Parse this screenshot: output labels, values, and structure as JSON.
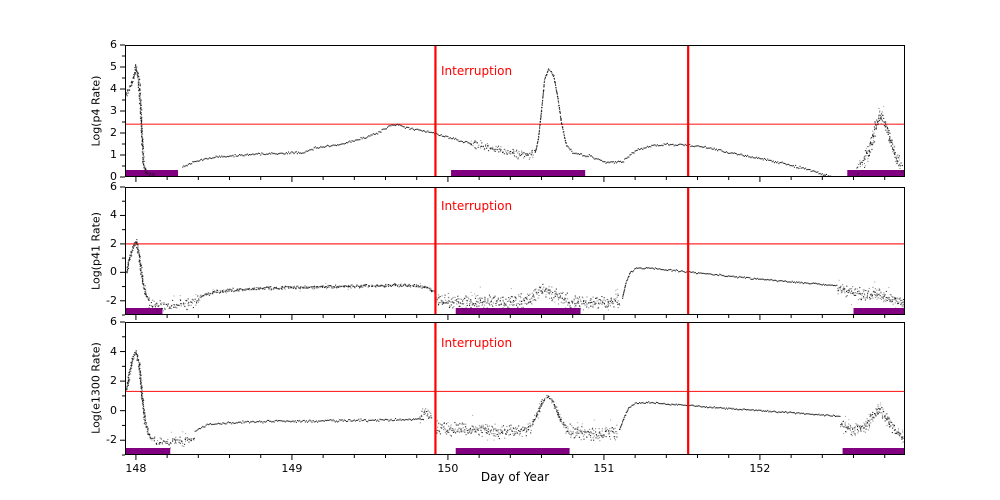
{
  "figure": {
    "xlabel": "Day of Year",
    "xlim": [
      147.93,
      152.93
    ],
    "xticks": [
      148,
      149,
      150,
      151,
      152
    ],
    "x_minor_step": 0.2,
    "interruption_label": "Interruption",
    "interruption_lines": [
      149.92,
      151.54
    ],
    "colors": {
      "background": "#ffffff",
      "frame": "#000000",
      "points": "#141414",
      "threshold_line": "#ff2a2a",
      "interruption_line": "#ff0000",
      "interruption_text": "#ff0000",
      "interval_bar": "#800080",
      "label_text": "#000000"
    }
  },
  "chart_data": [
    {
      "type": "scatter",
      "ylabel": "Log(p4 Rate)",
      "ylim": [
        0,
        6
      ],
      "yticks": [
        0,
        1,
        2,
        3,
        4,
        5,
        6
      ],
      "y_minor_step": 0.5,
      "threshold": 2.4,
      "interval_bars": [
        [
          147.93,
          148.27
        ],
        [
          150.02,
          150.88
        ],
        [
          152.56,
          152.93
        ]
      ],
      "segments": [
        {
          "noise": 0.1,
          "spread": 2,
          "points": [
            [
              147.93,
              3.7
            ],
            [
              147.95,
              3.95
            ],
            [
              147.97,
              4.15
            ],
            [
              147.99,
              4.6
            ],
            [
              148.0,
              5.0
            ],
            [
              148.02,
              4.4
            ],
            [
              148.035,
              2.6
            ],
            [
              148.05,
              0.5
            ],
            [
              148.07,
              0.18
            ],
            [
              148.1,
              0.1
            ],
            [
              148.12,
              0.06
            ]
          ]
        },
        {
          "noise": 0.05,
          "spread": 1,
          "points": [
            [
              148.3,
              0.45
            ],
            [
              148.4,
              0.75
            ],
            [
              148.5,
              0.9
            ],
            [
              148.6,
              0.95
            ],
            [
              148.7,
              1.0
            ],
            [
              148.8,
              1.05
            ],
            [
              148.9,
              1.05
            ],
            [
              149.0,
              1.1
            ],
            [
              149.07,
              1.08
            ],
            [
              149.15,
              1.32
            ],
            [
              149.25,
              1.4
            ],
            [
              149.35,
              1.55
            ],
            [
              149.45,
              1.75
            ],
            [
              149.55,
              2.0
            ],
            [
              149.62,
              2.28
            ],
            [
              149.67,
              2.4
            ],
            [
              149.72,
              2.25
            ],
            [
              149.8,
              2.15
            ],
            [
              149.9,
              2.0
            ],
            [
              150.0,
              1.8
            ],
            [
              150.1,
              1.6
            ],
            [
              150.15,
              1.55
            ]
          ]
        },
        {
          "noise": 0.18,
          "spread": 2,
          "points": [
            [
              150.15,
              1.5
            ],
            [
              150.22,
              1.42
            ],
            [
              150.3,
              1.28
            ],
            [
              150.38,
              1.12
            ],
            [
              150.45,
              1.05
            ],
            [
              150.52,
              1.0
            ],
            [
              150.56,
              1.05
            ]
          ]
        },
        {
          "noise": 0.06,
          "spread": 1,
          "points": [
            [
              150.56,
              1.1
            ],
            [
              150.58,
              1.7
            ],
            [
              150.6,
              3.0
            ],
            [
              150.62,
              4.4
            ],
            [
              150.645,
              4.9
            ],
            [
              150.66,
              4.85
            ],
            [
              150.68,
              4.55
            ],
            [
              150.7,
              3.8
            ],
            [
              150.73,
              2.4
            ],
            [
              150.76,
              1.45
            ],
            [
              150.8,
              1.1
            ],
            [
              150.85,
              1.0
            ],
            [
              150.92,
              0.95
            ]
          ]
        },
        {
          "noise": 0.05,
          "spread": 1,
          "points": [
            [
              150.92,
              0.92
            ],
            [
              151.0,
              0.7
            ],
            [
              151.04,
              0.63
            ],
            [
              151.08,
              0.7
            ],
            [
              151.12,
              0.68
            ],
            [
              151.16,
              0.95
            ],
            [
              151.22,
              1.25
            ],
            [
              151.3,
              1.4
            ],
            [
              151.4,
              1.48
            ],
            [
              151.5,
              1.47
            ],
            [
              151.6,
              1.4
            ],
            [
              151.7,
              1.28
            ],
            [
              151.8,
              1.12
            ],
            [
              151.9,
              0.98
            ],
            [
              152.0,
              0.85
            ],
            [
              152.1,
              0.7
            ],
            [
              152.2,
              0.55
            ],
            [
              152.3,
              0.35
            ],
            [
              152.4,
              0.12
            ],
            [
              152.46,
              0.02
            ]
          ]
        },
        {
          "noise": 0.3,
          "spread": 2,
          "points": [
            [
              152.62,
              0.3
            ],
            [
              152.66,
              0.6
            ],
            [
              152.7,
              1.2
            ],
            [
              152.74,
              2.2
            ],
            [
              152.77,
              2.85
            ],
            [
              152.8,
              2.4
            ],
            [
              152.84,
              1.6
            ],
            [
              152.87,
              1.0
            ],
            [
              152.9,
              0.55
            ],
            [
              152.93,
              0.35
            ]
          ]
        }
      ]
    },
    {
      "type": "scatter",
      "ylabel": "Log(p41 Rate)",
      "ylim": [
        -3,
        6
      ],
      "yticks": [
        -2,
        0,
        2,
        4,
        6
      ],
      "y_minor_step": 1,
      "threshold": 2.0,
      "interval_bars": [
        [
          147.93,
          148.17
        ],
        [
          150.05,
          150.85
        ],
        [
          152.6,
          152.93
        ]
      ],
      "segments": [
        {
          "noise": 0.1,
          "spread": 2,
          "points": [
            [
              147.94,
              0.0
            ],
            [
              147.96,
              0.9
            ],
            [
              147.98,
              1.7
            ],
            [
              148.0,
              2.2
            ],
            [
              148.02,
              1.3
            ],
            [
              148.04,
              -0.4
            ],
            [
              148.06,
              -1.5
            ],
            [
              148.09,
              -2.1
            ]
          ]
        },
        {
          "noise": 0.35,
          "spread": 2,
          "points": [
            [
              148.09,
              -2.2
            ],
            [
              148.18,
              -2.3
            ],
            [
              148.28,
              -2.3
            ],
            [
              148.36,
              -2.15
            ],
            [
              148.42,
              -1.85
            ]
          ]
        },
        {
          "noise": 0.1,
          "spread": 2,
          "points": [
            [
              148.42,
              -1.7
            ],
            [
              148.5,
              -1.4
            ],
            [
              148.6,
              -1.25
            ],
            [
              148.75,
              -1.15
            ],
            [
              148.95,
              -1.08
            ],
            [
              149.15,
              -1.05
            ],
            [
              149.35,
              -1.0
            ],
            [
              149.55,
              -0.95
            ],
            [
              149.68,
              -0.9
            ],
            [
              149.78,
              -0.95
            ],
            [
              149.86,
              -1.05
            ],
            [
              149.92,
              -1.4
            ]
          ]
        },
        {
          "noise": 0.45,
          "spread": 3,
          "points": [
            [
              149.93,
              -1.9
            ],
            [
              150.05,
              -2.05
            ],
            [
              150.2,
              -2.1
            ],
            [
              150.35,
              -2.1
            ],
            [
              150.5,
              -2.0
            ],
            [
              150.57,
              -1.5
            ],
            [
              150.62,
              -1.2
            ],
            [
              150.68,
              -1.6
            ],
            [
              150.78,
              -2.0
            ],
            [
              150.9,
              -2.1
            ],
            [
              151.02,
              -2.1
            ],
            [
              151.11,
              -2.05
            ]
          ]
        },
        {
          "noise": 0.06,
          "spread": 1,
          "points": [
            [
              151.12,
              -1.8
            ],
            [
              151.14,
              -0.8
            ],
            [
              151.17,
              0.0
            ],
            [
              151.21,
              0.28
            ],
            [
              151.28,
              0.3
            ],
            [
              151.38,
              0.2
            ],
            [
              151.5,
              0.07
            ],
            [
              151.65,
              -0.08
            ],
            [
              151.8,
              -0.27
            ],
            [
              152.0,
              -0.48
            ],
            [
              152.2,
              -0.67
            ],
            [
              152.35,
              -0.8
            ],
            [
              152.5,
              -0.95
            ]
          ]
        },
        {
          "noise": 0.4,
          "spread": 3,
          "points": [
            [
              152.5,
              -1.15
            ],
            [
              152.6,
              -1.45
            ],
            [
              152.68,
              -1.6
            ],
            [
              152.74,
              -1.45
            ],
            [
              152.78,
              -1.7
            ],
            [
              152.84,
              -1.9
            ],
            [
              152.9,
              -2.1
            ],
            [
              152.93,
              -2.2
            ]
          ]
        }
      ]
    },
    {
      "type": "scatter",
      "ylabel": "Log(e1300 Rate)",
      "ylim": [
        -3,
        6
      ],
      "yticks": [
        -2,
        0,
        2,
        4,
        6
      ],
      "y_minor_step": 1,
      "threshold": 1.3,
      "interval_bars": [
        [
          147.93,
          148.22
        ],
        [
          150.05,
          150.78
        ],
        [
          152.53,
          152.93
        ]
      ],
      "segments": [
        {
          "noise": 0.1,
          "spread": 2,
          "points": [
            [
              147.94,
              1.4
            ],
            [
              147.96,
              2.6
            ],
            [
              147.98,
              3.5
            ],
            [
              148.0,
              4.0
            ],
            [
              148.02,
              3.2
            ],
            [
              148.04,
              1.0
            ],
            [
              148.06,
              -0.8
            ],
            [
              148.09,
              -1.8
            ],
            [
              148.12,
              -2.05
            ]
          ]
        },
        {
          "noise": 0.3,
          "spread": 2,
          "points": [
            [
              148.12,
              -2.1
            ],
            [
              148.2,
              -2.2
            ],
            [
              148.3,
              -2.1
            ],
            [
              148.38,
              -1.8
            ]
          ]
        },
        {
          "noise": 0.08,
          "spread": 1,
          "points": [
            [
              148.38,
              -1.35
            ],
            [
              148.45,
              -1.0
            ],
            [
              148.55,
              -0.85
            ],
            [
              148.7,
              -0.76
            ],
            [
              148.9,
              -0.72
            ],
            [
              149.1,
              -0.7
            ],
            [
              149.3,
              -0.68
            ],
            [
              149.5,
              -0.65
            ],
            [
              149.65,
              -0.62
            ],
            [
              149.78,
              -0.58
            ],
            [
              149.85,
              -0.55
            ]
          ]
        },
        {
          "noise": 0.3,
          "spread": 2,
          "points": [
            [
              149.82,
              -0.45
            ],
            [
              149.86,
              0.0
            ],
            [
              149.9,
              -0.5
            ]
          ]
        },
        {
          "noise": 0.4,
          "spread": 3,
          "points": [
            [
              149.93,
              -1.05
            ],
            [
              150.05,
              -1.25
            ],
            [
              150.2,
              -1.35
            ],
            [
              150.35,
              -1.4
            ],
            [
              150.48,
              -1.3
            ],
            [
              150.54,
              -1.2
            ]
          ]
        },
        {
          "noise": 0.15,
          "spread": 2,
          "points": [
            [
              150.54,
              -0.9
            ],
            [
              150.58,
              -0.1
            ],
            [
              150.61,
              0.7
            ],
            [
              150.64,
              1.0
            ],
            [
              150.67,
              0.7
            ],
            [
              150.7,
              0.0
            ],
            [
              150.73,
              -0.8
            ],
            [
              150.76,
              -1.2
            ]
          ]
        },
        {
          "noise": 0.45,
          "spread": 3,
          "points": [
            [
              150.76,
              -1.4
            ],
            [
              150.9,
              -1.5
            ],
            [
              151.0,
              -1.55
            ],
            [
              151.09,
              -1.5
            ]
          ]
        },
        {
          "noise": 0.05,
          "spread": 1,
          "points": [
            [
              151.1,
              -1.3
            ],
            [
              151.13,
              -0.5
            ],
            [
              151.16,
              0.2
            ],
            [
              151.2,
              0.5
            ],
            [
              151.28,
              0.55
            ],
            [
              151.4,
              0.45
            ],
            [
              151.55,
              0.35
            ],
            [
              151.7,
              0.22
            ],
            [
              151.85,
              0.1
            ],
            [
              152.0,
              0.0
            ],
            [
              152.15,
              -0.1
            ],
            [
              152.3,
              -0.22
            ],
            [
              152.45,
              -0.33
            ],
            [
              152.52,
              -0.4
            ]
          ]
        },
        {
          "noise": 0.35,
          "spread": 3,
          "points": [
            [
              152.52,
              -0.9
            ],
            [
              152.6,
              -1.3
            ],
            [
              152.67,
              -1.15
            ],
            [
              152.72,
              -0.5
            ],
            [
              152.76,
              0.1
            ],
            [
              152.8,
              -0.3
            ],
            [
              152.84,
              -1.0
            ],
            [
              152.89,
              -1.6
            ],
            [
              152.93,
              -1.9
            ]
          ]
        }
      ]
    }
  ]
}
